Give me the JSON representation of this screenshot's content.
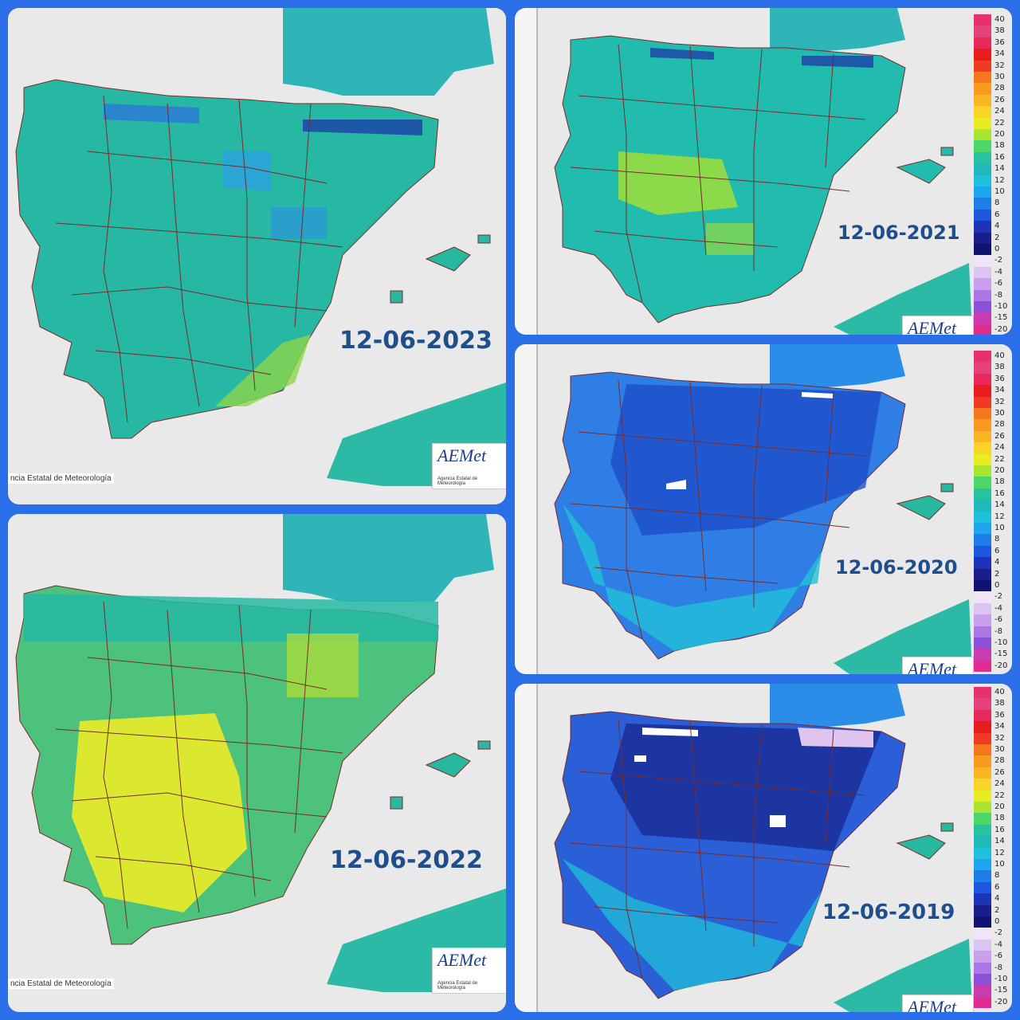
{
  "panels": [
    {
      "id": "p2023",
      "date": "12-06-2023",
      "credit": "ncia Estatal de Meteorología",
      "logo": "AEMet",
      "logo_sub": "Agencia Estatal de Meteorología",
      "fill": "#27b8a4"
    },
    {
      "id": "p2022",
      "date": "12-06-2022",
      "credit": "ncia Estatal de Meteorología",
      "logo": "AEMet",
      "logo_sub": "Agencia Estatal de Meteorología",
      "fill": "#4cc27c"
    },
    {
      "id": "p2021",
      "date": "12-06-2021",
      "logo": "AEMet",
      "fill": "#22bcae"
    },
    {
      "id": "p2020",
      "date": "12-06-2020",
      "logo": "AEMet",
      "fill": "#2f7ee6"
    },
    {
      "id": "p2019",
      "date": "12-06-2019",
      "logo": "AEMet",
      "fill": "#2a5fd8"
    }
  ],
  "legend": {
    "labels": [
      "40",
      "38",
      "36",
      "34",
      "32",
      "30",
      "28",
      "26",
      "24",
      "22",
      "20",
      "18",
      "16",
      "14",
      "12",
      "10",
      "8",
      "6",
      "4",
      "2",
      "0",
      "-2",
      "-4",
      "-6",
      "-8",
      "-10",
      "-15",
      "-20"
    ],
    "colors": [
      "#e8306e",
      "#e4407a",
      "#e82a5a",
      "#e81c1c",
      "#f03a22",
      "#f4761e",
      "#f89a1e",
      "#f8b622",
      "#f8d426",
      "#e8ec20",
      "#a8e430",
      "#4cd66a",
      "#28c2a0",
      "#20b8b8",
      "#1ec0dc",
      "#1ea6ec",
      "#1e7ee8",
      "#1e56e0",
      "#1e34b8",
      "#1a1e8c",
      "#101470",
      "#f0e4f8",
      "#dcc4f2",
      "#c8a0ee",
      "#a878e4",
      "#8c50d8",
      "#c83cb0",
      "#e02c90"
    ]
  }
}
